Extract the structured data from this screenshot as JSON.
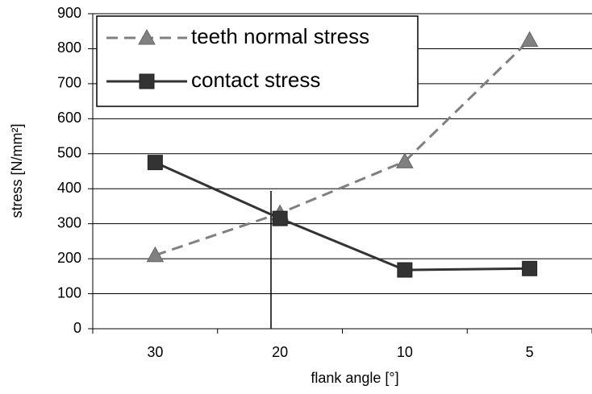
{
  "chart_data": {
    "type": "line",
    "xlabel": "flank angle [°]",
    "ylabel": "stress [N/mm²]",
    "categories": [
      "30",
      "20",
      "10",
      "5"
    ],
    "series": [
      {
        "name": "teeth normal stress",
        "color": "#808080",
        "dash": true,
        "marker": "triangle",
        "values": [
          210,
          330,
          478,
          825
        ]
      },
      {
        "name": "contact stress",
        "color": "#333333",
        "dash": false,
        "marker": "square",
        "values": [
          475,
          315,
          168,
          172
        ]
      }
    ],
    "ylim": [
      0,
      900
    ],
    "yticks": [
      0,
      100,
      200,
      300,
      400,
      500,
      600,
      700,
      800,
      900
    ],
    "grid": true,
    "legend": "upper left"
  }
}
